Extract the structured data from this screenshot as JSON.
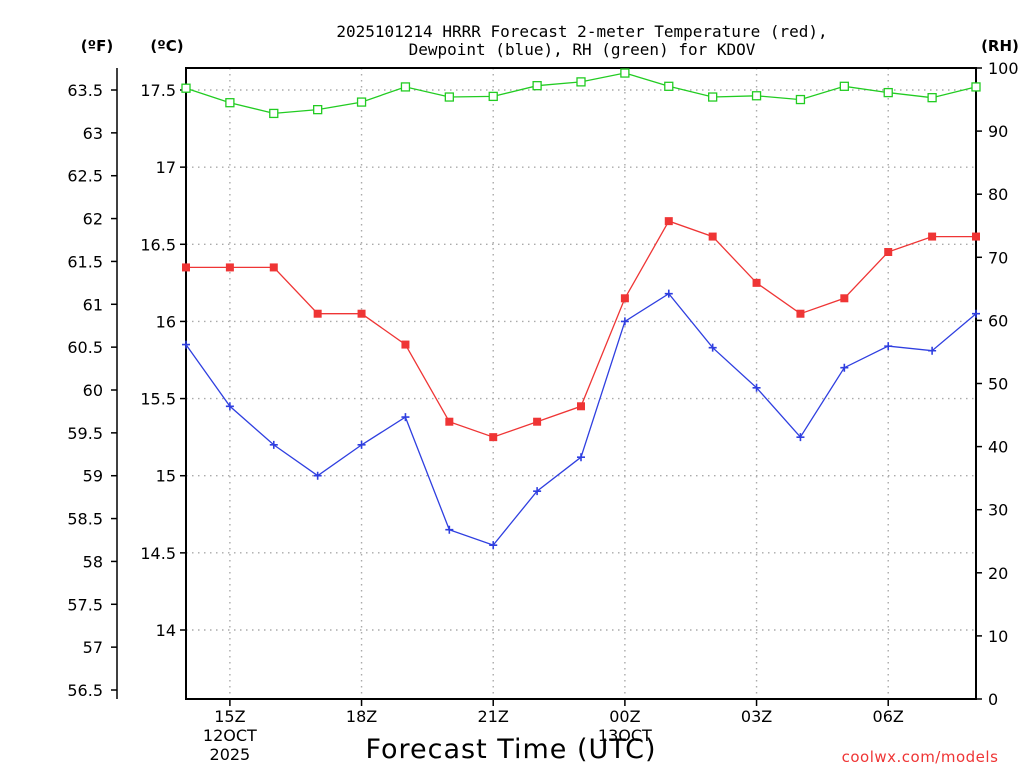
{
  "chart_data": {
    "type": "line",
    "title_line1": "2025101214 HRRR Forecast 2-meter Temperature (red),",
    "title_line2": "Dewpoint (blue), RH (green) for KDOV",
    "xlabel": "Forecast Time (UTC)",
    "watermark": "coolwx.com/models",
    "units": {
      "fahrenheit": "(ºF)",
      "celsius": "(ºC)",
      "rh": "(RH)"
    },
    "x": [
      14,
      15,
      16,
      17,
      18,
      19,
      20,
      21,
      22,
      23,
      24,
      25,
      26,
      27,
      28,
      29,
      30,
      31,
      32
    ],
    "xlim": [
      14,
      32
    ],
    "x_ticks": [
      {
        "x": 15,
        "label": "15Z",
        "date1": "12OCT",
        "date2": "2025"
      },
      {
        "x": 18,
        "label": "18Z"
      },
      {
        "x": 21,
        "label": "21Z"
      },
      {
        "x": 24,
        "label": "00Z",
        "date1": "13OCT"
      },
      {
        "x": 27,
        "label": "03Z"
      },
      {
        "x": 30,
        "label": "06Z"
      }
    ],
    "ylim_c": [
      13.6,
      17.7
    ],
    "celsius_ticks": [
      "14",
      "14.5",
      "15",
      "15.5",
      "16",
      "16.5",
      "17",
      "17.5"
    ],
    "fahrenheit_ticks": [
      "56.5",
      "57",
      "57.5",
      "58",
      "58.5",
      "59",
      "59.5",
      "60",
      "60.5",
      "61",
      "61.5",
      "62",
      "62.5",
      "63",
      "63.5"
    ],
    "rh_ticks": [
      "0",
      "10",
      "20",
      "30",
      "40",
      "50",
      "60",
      "70",
      "80",
      "90",
      "100"
    ],
    "ylim_rh": [
      0,
      100
    ],
    "series": [
      {
        "name": "Temperature",
        "color": "#ef3535",
        "marker": "filled-square",
        "units": "C",
        "values": [
          16.35,
          16.35,
          16.35,
          16.05,
          16.05,
          15.85,
          15.35,
          15.25,
          15.35,
          15.45,
          16.15,
          16.65,
          16.55,
          16.25,
          16.05,
          16.15,
          16.45,
          16.55,
          16.55
        ]
      },
      {
        "name": "Dewpoint",
        "color": "#2f3fe0",
        "marker": "plus",
        "units": "C",
        "values": [
          15.85,
          15.45,
          15.2,
          15.0,
          15.2,
          15.38,
          14.65,
          14.55,
          14.9,
          15.12,
          16.0,
          16.18,
          15.83,
          15.57,
          15.25,
          15.7,
          15.84,
          15.81,
          16.05
        ]
      },
      {
        "name": "RH",
        "color": "#22cc22",
        "marker": "open-square",
        "units": "RH",
        "values": [
          96.8,
          94.5,
          92.8,
          93.4,
          94.6,
          97.0,
          95.4,
          95.5,
          97.2,
          97.8,
          99.2,
          97.1,
          95.4,
          95.6,
          95.0,
          97.1,
          96.1,
          95.3,
          97.0
        ]
      }
    ]
  }
}
